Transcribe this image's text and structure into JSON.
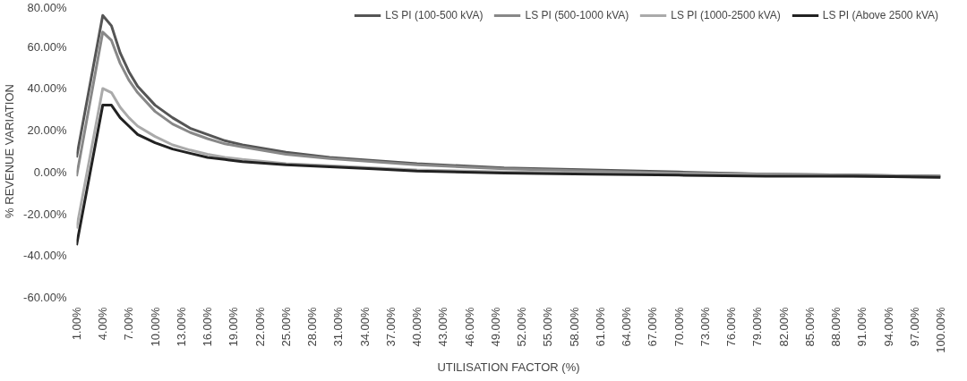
{
  "chart_data": {
    "type": "line",
    "xlabel": "UTILISATION FACTOR (%)",
    "ylabel": "% REVENUE VARIATION",
    "legend": "top",
    "grid": false,
    "marker": "none",
    "line_style": "solid",
    "xlim": [
      1,
      100
    ],
    "ylim": [
      -60,
      80
    ],
    "xticks": [
      {
        "value": 1,
        "label": "1.00%"
      },
      {
        "value": 4,
        "label": "4.00%"
      },
      {
        "value": 7,
        "label": "7.00%"
      },
      {
        "value": 10,
        "label": "10.00%"
      },
      {
        "value": 13,
        "label": "13.00%"
      },
      {
        "value": 16,
        "label": "16.00%"
      },
      {
        "value": 19,
        "label": "19.00%"
      },
      {
        "value": 22,
        "label": "22.00%"
      },
      {
        "value": 25,
        "label": "25.00%"
      },
      {
        "value": 28,
        "label": "28.00%"
      },
      {
        "value": 31,
        "label": "31.00%"
      },
      {
        "value": 34,
        "label": "34.00%"
      },
      {
        "value": 37,
        "label": "37.00%"
      },
      {
        "value": 40,
        "label": "40.00%"
      },
      {
        "value": 43,
        "label": "43.00%"
      },
      {
        "value": 46,
        "label": "46.00%"
      },
      {
        "value": 49,
        "label": "49.00%"
      },
      {
        "value": 52,
        "label": "52.00%"
      },
      {
        "value": 55,
        "label": "55.00%"
      },
      {
        "value": 58,
        "label": "58.00%"
      },
      {
        "value": 61,
        "label": "61.00%"
      },
      {
        "value": 64,
        "label": "64.00%"
      },
      {
        "value": 67,
        "label": "67.00%"
      },
      {
        "value": 70,
        "label": "70.00%"
      },
      {
        "value": 73,
        "label": "73.00%"
      },
      {
        "value": 76,
        "label": "76.00%"
      },
      {
        "value": 79,
        "label": "79.00%"
      },
      {
        "value": 82,
        "label": "82.00%"
      },
      {
        "value": 85,
        "label": "85.00%"
      },
      {
        "value": 88,
        "label": "88.00%"
      },
      {
        "value": 91,
        "label": "91.00%"
      },
      {
        "value": 94,
        "label": "94.00%"
      },
      {
        "value": 97,
        "label": "97.00%"
      },
      {
        "value": 100,
        "label": "100.00%"
      }
    ],
    "yticks": [
      {
        "value": 80,
        "label": "80.00%"
      },
      {
        "value": 60,
        "label": "60.00%"
      },
      {
        "value": 40,
        "label": "40.00%"
      },
      {
        "value": 20,
        "label": "20.00%"
      },
      {
        "value": 0,
        "label": "0.00%"
      },
      {
        "value": -20,
        "label": "-20.00%"
      },
      {
        "value": -40,
        "label": "-40.00%"
      },
      {
        "value": -60,
        "label": "-60.00%"
      }
    ],
    "x": [
      1,
      4,
      5,
      6,
      7,
      8,
      10,
      12,
      14,
      16,
      18,
      20,
      25,
      30,
      35,
      40,
      50,
      60,
      70,
      80,
      90,
      100
    ],
    "series": [
      {
        "name": "LS PI (100-500 kVA)",
        "color": "#555555",
        "values": [
          7,
          75,
          70,
          57,
          48,
          41,
          32,
          26,
          21,
          18,
          15,
          13,
          9.5,
          7,
          5.5,
          4,
          2,
          1,
          0,
          -1,
          -1.5,
          -2
        ]
      },
      {
        "name": "LS PI (500-1000 kVA)",
        "color": "#888888",
        "values": [
          -2,
          67,
          63,
          52,
          44,
          38,
          29,
          23,
          19,
          16,
          13.5,
          12,
          8.5,
          6.5,
          5,
          3.5,
          1.5,
          0.5,
          -0.5,
          -1,
          -1.5,
          -2
        ]
      },
      {
        "name": "LS PI (1000-2500 kVA)",
        "color": "#aaaaaa",
        "values": [
          -27,
          40,
          38,
          31,
          26,
          22,
          17,
          13,
          10.5,
          8.5,
          7,
          6,
          4,
          3,
          2,
          1,
          0,
          -0.5,
          -1,
          -1.5,
          -2,
          -2.5
        ]
      },
      {
        "name": "LS PI (Above 2500 kVA)",
        "color": "#222222",
        "values": [
          -35,
          32,
          32,
          26,
          22,
          18,
          14,
          11,
          9,
          7,
          6,
          5,
          3.5,
          2.5,
          1.5,
          0.5,
          -0.5,
          -1,
          -1.5,
          -2,
          -2,
          -2.5
        ]
      }
    ]
  }
}
